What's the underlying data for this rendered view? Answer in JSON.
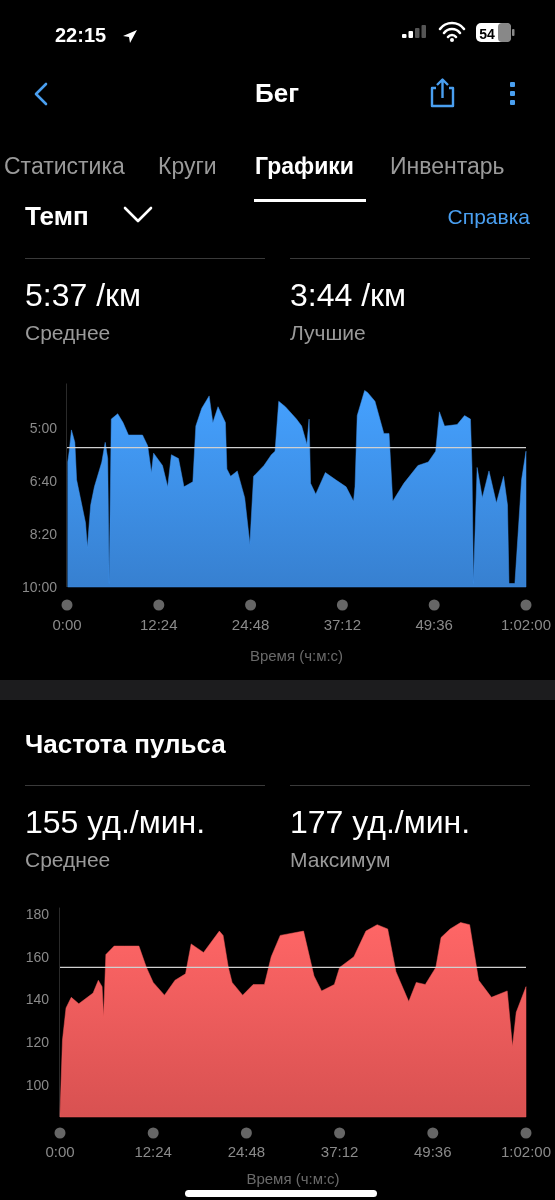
{
  "chart_data": [
    {
      "type": "area",
      "title": "Темп",
      "xlabel": "Время (ч:м:с)",
      "annotations": [
        "22:15",
        "54",
        "Бег",
        "Статистика",
        "Круги",
        "Графики",
        "Инвентарь",
        "Справка",
        "5:37 /км",
        "Среднее",
        "3:44 /км",
        "Лучшие"
      ],
      "x": [
        0.1,
        0.1,
        0.3,
        0.6,
        1.06,
        1.3,
        2.5,
        2.75,
        3.2,
        3.7,
        4.7,
        5.16,
        5.5,
        5.7,
        5.98,
        6.85,
        7.57,
        8.3,
        10.2,
        10.9,
        11.4,
        11.7,
        12.9,
        13.6,
        14.1,
        15.06,
        15.8,
        17.0,
        17.4,
        18.2,
        19.2,
        19.7,
        20.4,
        21.4,
        21.6,
        22.1,
        23.0,
        24.0,
        24.7,
        25.2,
        26.6,
        27.6,
        28.1,
        28.6,
        29.5,
        31.0,
        31.7,
        32.4,
        32.7,
        32.9,
        33.6,
        34.9,
        36.3,
        37.7,
        38.7,
        38.9,
        39.2,
        40.2,
        40.6,
        41.6,
        42.8,
        43.5,
        44.0,
        45.5,
        47.4,
        48.8,
        49.8,
        50.3,
        51.0,
        52.7,
        53.7,
        54.5,
        54.7,
        54.9,
        55.4,
        56.1,
        57.0,
        58.0,
        58.97,
        59.5,
        59.7,
        60.5,
        61.4,
        62,
        62
      ],
      "series": [
        {
          "color": "#3d8ee8",
          "values": [
            10,
            6.07,
            5.73,
            5.06,
            5.45,
            6.63,
            7.98,
            8.76,
            7.42,
            6.85,
            6.07,
            5.45,
            5.96,
            9.89,
            4.72,
            4.55,
            4.83,
            5.22,
            5.22,
            5.56,
            6.4,
            5.79,
            6.18,
            6.85,
            5.84,
            5.96,
            6.85,
            6.69,
            4.94,
            4.38,
            3.99,
            4.83,
            4.33,
            4.83,
            6.29,
            6.52,
            6.35,
            7.19,
            8.65,
            6.52,
            6.18,
            5.84,
            5.73,
            4.16,
            4.33,
            4.72,
            4.94,
            5.51,
            4.72,
            6.74,
            7.08,
            6.4,
            6.63,
            6.85,
            7.3,
            6.85,
            4.61,
            3.82,
            3.88,
            4.16,
            5.17,
            5.17,
            7.3,
            6.74,
            6.18,
            6.07,
            5.73,
            4.49,
            4.94,
            4.89,
            4.61,
            4.72,
            6.18,
            9.89,
            6.24,
            7.19,
            6.35,
            7.36,
            6.52,
            7.42,
            9.89,
            9.89,
            6.63,
            5.73,
            10
          ]
        }
      ],
      "xlim": [
        0,
        62
      ],
      "xticks": [
        {
          "value": 0,
          "label": "0:00"
        },
        {
          "value": 12.4,
          "label": "12:24"
        },
        {
          "value": 24.8,
          "label": "24:48"
        },
        {
          "value": 37.2,
          "label": "37:12"
        },
        {
          "value": 49.6,
          "label": "49:36"
        },
        {
          "value": 62,
          "label": "1:02:00"
        }
      ],
      "ylim": [
        10,
        3.6
      ],
      "yticks": [
        {
          "value": 5,
          "label": "5:00"
        },
        {
          "value": 6.667,
          "label": "6:40"
        },
        {
          "value": 8.333,
          "label": "8:20"
        },
        {
          "value": 10,
          "label": "10:00"
        }
      ],
      "ref_lines": [
        {
          "axis": "y",
          "value": 5.617,
          "color": "#d0d0d0"
        }
      ]
    },
    {
      "type": "area",
      "title": "Частота пульса",
      "xlabel": "Время (ч:м:с)",
      "annotations": [
        "155 уд./мин.",
        "Среднее",
        "177 уд./мин.",
        "Максимум"
      ],
      "x": [
        0,
        0.33,
        0.8,
        1.5,
        2.5,
        4.4,
        5.1,
        5.6,
        5.8,
        6.1,
        7.2,
        8.6,
        10.5,
        11.5,
        12.4,
        13.9,
        15.3,
        16.7,
        17.45,
        19.1,
        21.2,
        21.7,
        22.4,
        22.9,
        24.3,
        25.7,
        27.2,
        28.1,
        29.3,
        32.4,
        33.8,
        34.8,
        36.5,
        37.2,
        39.1,
        40.7,
        42.2,
        43.6,
        44.7,
        46.4,
        47.4,
        48.6,
        50.0,
        50.7,
        51.9,
        53.3,
        54.5,
        55.7,
        57.4,
        59.5,
        60.2,
        60.7,
        62
      ],
      "series": [
        {
          "color": "#f05a5a",
          "values": [
            86,
            121,
            136,
            141,
            138,
            143,
            149,
            146,
            132,
            161,
            165,
            165,
            165,
            155,
            148,
            142,
            149,
            152,
            166,
            162,
            172,
            170,
            155,
            148,
            142,
            147,
            147,
            160,
            170,
            172,
            151,
            144,
            147,
            155,
            160,
            172,
            175,
            173,
            153,
            139,
            148,
            147,
            155,
            169,
            173,
            176,
            175,
            149,
            141,
            144,
            118,
            134,
            146
          ]
        }
      ],
      "xlim": [
        0,
        62
      ],
      "xticks": [
        {
          "value": 0,
          "label": "0:00"
        },
        {
          "value": 12.4,
          "label": "12:24"
        },
        {
          "value": 24.8,
          "label": "24:48"
        },
        {
          "value": 37.2,
          "label": "37:12"
        },
        {
          "value": 49.6,
          "label": "49:36"
        },
        {
          "value": 62,
          "label": "1:02:00"
        }
      ],
      "ylim": [
        85,
        183
      ],
      "yticks": [
        100,
        120,
        140,
        160,
        180
      ],
      "ref_lines": [
        {
          "axis": "y",
          "value": 155,
          "color": "#d0d0d0"
        }
      ]
    }
  ]
}
